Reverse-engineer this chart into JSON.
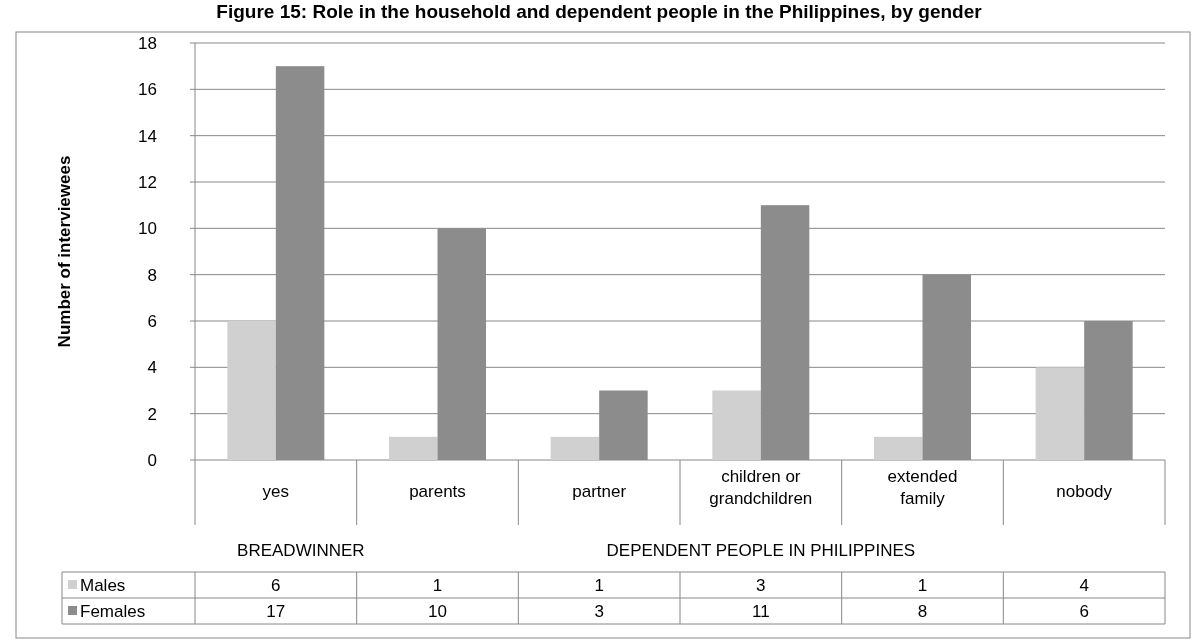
{
  "chart_data": {
    "type": "bar",
    "title": "Figure 15: Role in the household and dependent people in the Philippines, by gender",
    "ylabel": "Number of interviewees",
    "categories": [
      "yes",
      "parents",
      "partner",
      "children or grandchildren",
      "extended family",
      "nobody"
    ],
    "series": [
      {
        "name": "Males",
        "color": "#d0d0d0",
        "values": [
          6,
          1,
          1,
          3,
          1,
          4
        ]
      },
      {
        "name": "Females",
        "color": "#8c8c8c",
        "values": [
          17,
          10,
          3,
          11,
          8,
          6
        ]
      }
    ],
    "ylim": [
      0,
      18
    ],
    "yticks": [
      0,
      2,
      4,
      6,
      8,
      10,
      12,
      14,
      16,
      18
    ],
    "grid": "y",
    "legend": "bottom",
    "data_labels": true,
    "annotations": [
      "BREADWINNER",
      "DEPENDENT PEOPLE IN PHILIPPINES"
    ]
  }
}
